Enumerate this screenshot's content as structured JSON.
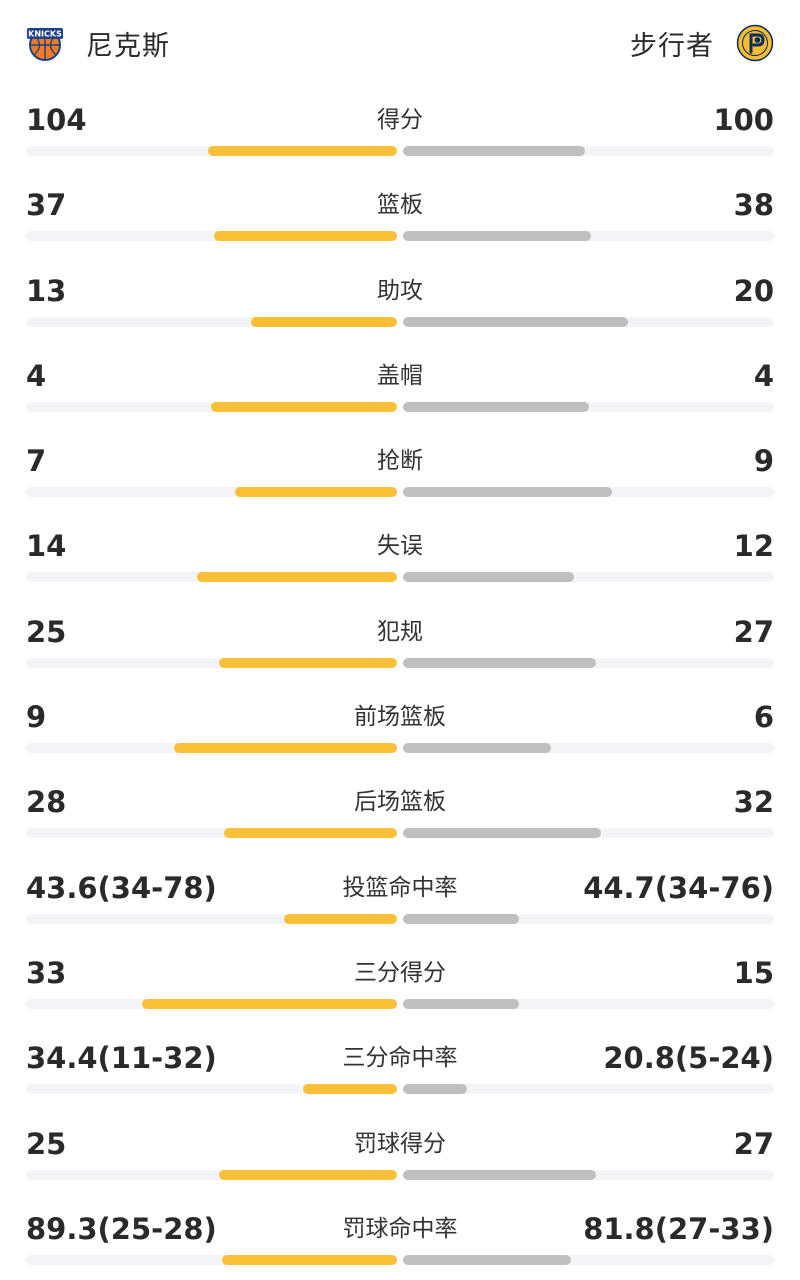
{
  "home": {
    "name": "尼克斯",
    "logo_icon": "knicks-logo-icon",
    "logo_text": "KNICKS",
    "color": "#f9bf36"
  },
  "away": {
    "name": "步行者",
    "logo_icon": "pacers-logo-icon",
    "color": "#bfbfbf"
  },
  "stats": [
    {
      "label": "得分",
      "left": "104",
      "right": "100",
      "left_frac": 0.51,
      "right_frac": 0.49
    },
    {
      "label": "篮板",
      "left": "37",
      "right": "38",
      "left_frac": 0.493,
      "right_frac": 0.507
    },
    {
      "label": "助攻",
      "left": "13",
      "right": "20",
      "left_frac": 0.394,
      "right_frac": 0.606
    },
    {
      "label": "盖帽",
      "left": "4",
      "right": "4",
      "left_frac": 0.5,
      "right_frac": 0.5
    },
    {
      "label": "抢断",
      "left": "7",
      "right": "9",
      "left_frac": 0.4375,
      "right_frac": 0.5625
    },
    {
      "label": "失误",
      "left": "14",
      "right": "12",
      "left_frac": 0.538,
      "right_frac": 0.462
    },
    {
      "label": "犯规",
      "left": "25",
      "right": "27",
      "left_frac": 0.481,
      "right_frac": 0.519
    },
    {
      "label": "前场篮板",
      "left": "9",
      "right": "6",
      "left_frac": 0.6,
      "right_frac": 0.4
    },
    {
      "label": "后场篮板",
      "left": "28",
      "right": "32",
      "left_frac": 0.467,
      "right_frac": 0.533
    },
    {
      "label": "投篮命中率",
      "left": "43.6(34-78)",
      "right": "44.7(34-76)",
      "left_frac": 0.305,
      "right_frac": 0.312
    },
    {
      "label": "三分得分",
      "left": "33",
      "right": "15",
      "left_frac": 0.687,
      "right_frac": 0.313
    },
    {
      "label": "三分命中率",
      "left": "34.4(11-32)",
      "right": "20.8(5-24)",
      "left_frac": 0.254,
      "right_frac": 0.173
    },
    {
      "label": "罚球得分",
      "left": "25",
      "right": "27",
      "left_frac": 0.481,
      "right_frac": 0.519
    },
    {
      "label": "罚球命中率",
      "left": "89.3(25-28)",
      "right": "81.8(27-33)",
      "left_frac": 0.471,
      "right_frac": 0.452
    }
  ]
}
